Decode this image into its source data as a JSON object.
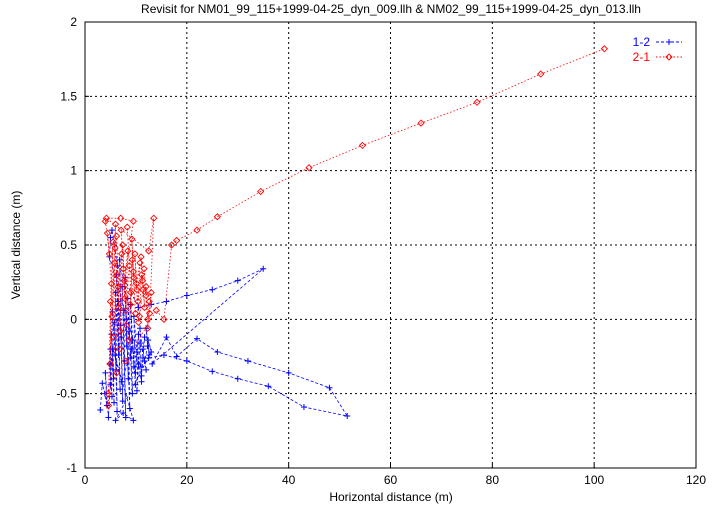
{
  "chart_data": {
    "type": "line",
    "title": "Revisit for NM01_99_115+1999-04-25_dyn_009.llh & NM02_99_115+1999-04-25_dyn_013.llh",
    "xlabel": "Horizontal distance (m)",
    "ylabel": "Vertical distance (m)",
    "xlim": [
      0,
      120
    ],
    "ylim": [
      -1,
      2
    ],
    "xticks": [
      0,
      20,
      40,
      60,
      80,
      100,
      120
    ],
    "yticks": [
      -1,
      -0.5,
      0,
      0.5,
      1,
      1.5,
      2
    ],
    "xtick_labels": [
      "0",
      "20",
      "40",
      "60",
      "80",
      "100",
      "120"
    ],
    "ytick_labels": [
      "-1",
      "-0.5",
      "0",
      "0.5",
      "1",
      "1.5",
      "2"
    ],
    "grid": true,
    "legend_position": "top-right",
    "series": [
      {
        "name": "1-2",
        "color": "#0000ff",
        "marker": "plus",
        "line": "dashed",
        "points": [
          [
            3.0,
            -0.61
          ],
          [
            3.4,
            -0.43
          ],
          [
            3.9,
            -0.5
          ],
          [
            4.3,
            -0.58
          ],
          [
            4.0,
            -0.36
          ],
          [
            4.6,
            -0.66
          ],
          [
            5.0,
            -0.44
          ],
          [
            4.9,
            -0.3
          ],
          [
            5.3,
            -0.52
          ],
          [
            5.0,
            -0.2
          ],
          [
            5.6,
            -0.4
          ],
          [
            5.2,
            -0.1
          ],
          [
            5.7,
            -0.56
          ],
          [
            5.4,
            0.05
          ],
          [
            6.1,
            -0.34
          ],
          [
            5.8,
            -0.02
          ],
          [
            6.3,
            -0.62
          ],
          [
            6.0,
            0.18
          ],
          [
            6.6,
            -0.24
          ],
          [
            6.2,
            0.3
          ],
          [
            6.9,
            -0.47
          ],
          [
            6.5,
            0.12
          ],
          [
            7.1,
            -0.12
          ],
          [
            6.8,
            0.4
          ],
          [
            7.4,
            -0.55
          ],
          [
            7.0,
            -0.04
          ],
          [
            7.7,
            -0.28
          ],
          [
            7.3,
            0.22
          ],
          [
            8.0,
            -0.66
          ],
          [
            7.6,
            0.06
          ],
          [
            8.2,
            -0.18
          ],
          [
            7.9,
            0.28
          ],
          [
            8.5,
            -0.4
          ],
          [
            8.1,
            0.0
          ],
          [
            8.8,
            -0.6
          ],
          [
            8.4,
            0.14
          ],
          [
            9.0,
            -0.26
          ],
          [
            8.7,
            -0.08
          ],
          [
            9.3,
            -0.5
          ],
          [
            9.0,
            0.1
          ],
          [
            9.6,
            -0.32
          ],
          [
            9.3,
            -0.14
          ],
          [
            9.9,
            -0.44
          ],
          [
            9.6,
            0.02
          ],
          [
            10.2,
            -0.22
          ],
          [
            9.9,
            -0.36
          ],
          [
            10.5,
            -0.1
          ],
          [
            10.2,
            -0.48
          ],
          [
            10.8,
            -0.16
          ],
          [
            10.5,
            -0.3
          ],
          [
            11.1,
            -0.42
          ],
          [
            10.8,
            -0.06
          ],
          [
            11.4,
            -0.26
          ],
          [
            11.1,
            -0.38
          ],
          [
            11.7,
            -0.12
          ],
          [
            11.4,
            -0.2
          ],
          [
            12.0,
            -0.34
          ],
          [
            11.7,
            -0.28
          ],
          [
            12.3,
            -0.18
          ],
          [
            12.0,
            -0.06
          ],
          [
            12.6,
            -0.24
          ],
          [
            12.4,
            -0.14
          ],
          [
            13.0,
            -0.22
          ],
          [
            6.0,
            -0.68
          ],
          [
            7.5,
            -0.63
          ],
          [
            9.5,
            -0.68
          ],
          [
            5.5,
            -0.2
          ],
          [
            7.2,
            -0.42
          ],
          [
            9.2,
            -0.2
          ],
          [
            11.0,
            -0.32
          ],
          [
            4.8,
            0.42
          ],
          [
            5.0,
            0.55
          ],
          [
            5.3,
            0.6
          ],
          [
            6.4,
            0.36
          ],
          [
            10.5,
            0.08
          ],
          [
            13.0,
            0.1
          ],
          [
            16.0,
            0.12
          ],
          [
            20.0,
            0.16
          ],
          [
            25.0,
            0.2
          ],
          [
            30.0,
            0.26
          ],
          [
            35.0,
            0.34
          ],
          [
            13.2,
            -0.3
          ],
          [
            16.0,
            -0.12
          ],
          [
            18.0,
            -0.25
          ],
          [
            22.0,
            -0.13
          ],
          [
            26.0,
            -0.22
          ],
          [
            32.0,
            -0.28
          ],
          [
            40.0,
            -0.36
          ],
          [
            48.0,
            -0.46
          ],
          [
            51.5,
            -0.65
          ],
          [
            43.0,
            -0.59
          ],
          [
            36.0,
            -0.45
          ],
          [
            30.0,
            -0.4
          ],
          [
            25.0,
            -0.35
          ],
          [
            20.0,
            -0.28
          ],
          [
            15.5,
            -0.24
          ],
          [
            12.5,
            -0.26
          ]
        ]
      },
      {
        "name": "2-1",
        "color": "#ff0000",
        "marker": "diamond",
        "line": "dotted",
        "points": [
          [
            4.0,
            0.66
          ],
          [
            4.8,
            0.44
          ],
          [
            4.4,
            0.58
          ],
          [
            5.2,
            0.24
          ],
          [
            4.6,
            -0.58
          ],
          [
            5.0,
            0.12
          ],
          [
            5.5,
            0.52
          ],
          [
            4.9,
            -0.3
          ],
          [
            5.8,
            0.38
          ],
          [
            5.3,
            0.02
          ],
          [
            6.0,
            0.64
          ],
          [
            5.6,
            -0.12
          ],
          [
            6.3,
            0.3
          ],
          [
            5.9,
            0.48
          ],
          [
            6.6,
            0.08
          ],
          [
            6.2,
            0.56
          ],
          [
            6.9,
            -0.08
          ],
          [
            6.5,
            0.22
          ],
          [
            7.2,
            0.44
          ],
          [
            6.8,
            -0.2
          ],
          [
            7.5,
            0.34
          ],
          [
            7.1,
            0.6
          ],
          [
            7.8,
            0.14
          ],
          [
            7.4,
            0.5
          ],
          [
            8.1,
            -0.04
          ],
          [
            7.7,
            0.26
          ],
          [
            8.4,
            0.46
          ],
          [
            8.0,
            0.06
          ],
          [
            8.7,
            0.36
          ],
          [
            8.3,
            0.62
          ],
          [
            9.0,
            0.18
          ],
          [
            8.6,
            -0.14
          ],
          [
            9.3,
            0.4
          ],
          [
            8.9,
            0.1
          ],
          [
            9.6,
            0.28
          ],
          [
            9.2,
            0.54
          ],
          [
            9.9,
            0.04
          ],
          [
            9.5,
            0.32
          ],
          [
            10.2,
            0.2
          ],
          [
            9.8,
            0.44
          ],
          [
            10.5,
            -0.02
          ],
          [
            10.1,
            0.24
          ],
          [
            10.8,
            0.38
          ],
          [
            10.4,
            0.12
          ],
          [
            11.1,
            0.3
          ],
          [
            10.7,
            0.02
          ],
          [
            11.4,
            0.2
          ],
          [
            11.0,
            0.42
          ],
          [
            11.7,
            0.08
          ],
          [
            11.3,
            0.26
          ],
          [
            12.0,
            0.16
          ],
          [
            11.6,
            0.34
          ],
          [
            12.3,
            0.0
          ],
          [
            12.0,
            0.22
          ],
          [
            12.6,
            0.12
          ],
          [
            12.3,
            -0.06
          ],
          [
            13.0,
            0.18
          ],
          [
            12.7,
            0.04
          ],
          [
            13.5,
            0.68
          ],
          [
            12.5,
            0.46
          ],
          [
            4.2,
            0.68
          ],
          [
            7.0,
            0.68
          ],
          [
            9.5,
            0.66
          ],
          [
            4.5,
            -0.5
          ],
          [
            6.2,
            -0.36
          ],
          [
            8.0,
            -0.28
          ],
          [
            14.0,
            0.06
          ],
          [
            15.5,
            0.0
          ],
          [
            17.0,
            0.5
          ],
          [
            18.0,
            0.53
          ],
          [
            22.0,
            0.6
          ],
          [
            26.0,
            0.69
          ],
          [
            34.5,
            0.86
          ],
          [
            44.0,
            1.02
          ],
          [
            54.5,
            1.17
          ],
          [
            66.0,
            1.32
          ],
          [
            77.0,
            1.46
          ],
          [
            89.5,
            1.65
          ],
          [
            102.0,
            1.82
          ]
        ]
      }
    ]
  }
}
